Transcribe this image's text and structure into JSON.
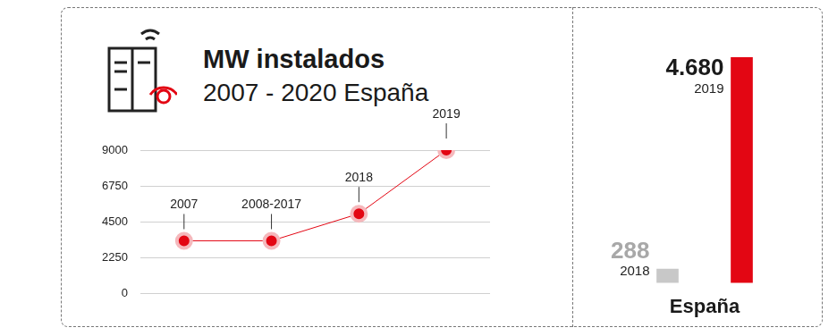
{
  "chart_data": [
    {
      "type": "line",
      "title": "MW instalados",
      "subtitle": "2007 - 2020 España",
      "categories": [
        "2007",
        "2008-2017",
        "2018",
        "2019"
      ],
      "values": [
        3300,
        3300,
        5000,
        9000
      ],
      "color": "#e30613",
      "marker": "circle",
      "ylim": [
        0,
        9000
      ],
      "yticks": [
        0,
        2250,
        4500,
        6750,
        9000
      ],
      "grid": true,
      "tick_labels": "y"
    },
    {
      "type": "bar",
      "x_label": "España",
      "categories": [
        "2018",
        "2019"
      ],
      "values": [
        288,
        4680
      ],
      "value_labels": [
        "288",
        "4.680"
      ],
      "colors": [
        "#c8c8c8",
        "#e30613"
      ],
      "data_labels": true,
      "ylim": [
        0,
        4680
      ],
      "tick_labels": false
    }
  ]
}
